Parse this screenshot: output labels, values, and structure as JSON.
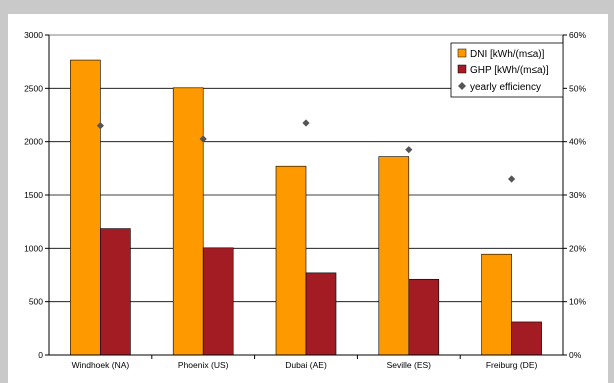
{
  "chart_data": {
    "type": "bar",
    "categories": [
      "Windhoek (NA)",
      "Phoenix (US)",
      "Dubai (AE)",
      "Seville (ES)",
      "Freiburg (DE)"
    ],
    "series": [
      {
        "name": "DNI [kWh/(m≤a)]",
        "values": [
          2765,
          2505,
          1770,
          1860,
          945
        ],
        "color": "#ff9900",
        "axis": "left"
      },
      {
        "name": "GHP [kWh/(m≤a)]",
        "values": [
          1185,
          1005,
          770,
          710,
          310
        ],
        "color": "#a31c23",
        "axis": "left"
      }
    ],
    "scatter": {
      "name": "yearly efficiency",
      "values": [
        43,
        40.5,
        43.5,
        38.5,
        33
      ],
      "color": "#555555",
      "axis": "right",
      "marker": "diamond"
    },
    "y_left": {
      "min": 0,
      "max": 3000,
      "ticks": [
        "0",
        "500",
        "1000",
        "1500",
        "2000",
        "2500",
        "3000"
      ]
    },
    "y_right": {
      "min": 0,
      "max": 60,
      "ticks": [
        "0%",
        "10%",
        "20%",
        "30%",
        "40%",
        "50%",
        "60%"
      ]
    },
    "grid": true,
    "legend_position": "top-right",
    "title": "",
    "xlabel": "",
    "ylabel": ""
  }
}
